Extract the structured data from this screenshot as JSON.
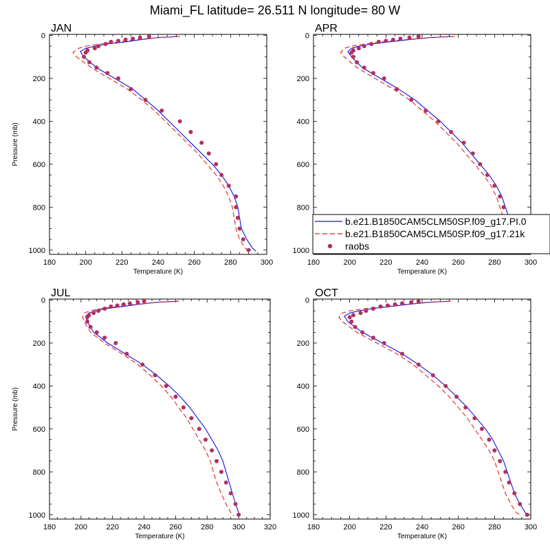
{
  "figure": {
    "title": "Miami_FL  latitude= 26.511 N longitude= 80 W"
  },
  "legend": {
    "entries": [
      {
        "label": "b.e21.B1850CAM5CLM50SP.f09_g17.PI.0",
        "color": "#1010e0",
        "style": "solid"
      },
      {
        "label": "b.e21.B1850CAM5CLM50SP.f09_g17.21k",
        "color": "#e02020",
        "style": "dashed"
      },
      {
        "label": "raobs",
        "color": "#b03060",
        "style": "marker"
      }
    ]
  },
  "chart_data": [
    {
      "type": "line",
      "title": "JAN",
      "xlabel": "Temperature (K)",
      "ylabel": "Pressure (mb)",
      "xlim": [
        180,
        300
      ],
      "ylim": [
        1020,
        -5
      ],
      "x_ticks": [
        180,
        200,
        220,
        240,
        260,
        280,
        300
      ],
      "y_ticks": [
        0,
        200,
        400,
        600,
        800,
        1000
      ],
      "series": [
        {
          "name": "b.e21.B1850CAM5CLM50SP.f09_g17.PI.0",
          "x": [
            251,
            240,
            230,
            222,
            212,
            205,
            200,
            197,
            199,
            206,
            216,
            226,
            233,
            240,
            246,
            252,
            258,
            264,
            270,
            275,
            279,
            282,
            284,
            285,
            286,
            289,
            292,
            294
          ],
          "y": [
            5,
            10,
            20,
            30,
            40,
            50,
            60,
            75,
            100,
            150,
            200,
            250,
            300,
            350,
            400,
            450,
            500,
            550,
            600,
            650,
            700,
            750,
            800,
            850,
            900,
            950,
            990,
            1005
          ]
        },
        {
          "name": "b.e21.B1850CAM5CLM50SP.f09_g17.21k",
          "x": [
            252,
            240,
            228,
            218,
            208,
            200,
            196,
            193,
            195,
            203,
            213,
            223,
            231,
            238,
            244,
            250,
            256,
            262,
            267,
            272,
            276,
            279,
            281,
            282,
            283,
            285,
            288,
            290
          ],
          "y": [
            5,
            10,
            20,
            30,
            40,
            50,
            60,
            80,
            100,
            150,
            200,
            250,
            300,
            350,
            400,
            450,
            500,
            550,
            600,
            650,
            700,
            750,
            800,
            850,
            900,
            950,
            990,
            1005
          ]
        },
        {
          "name": "raobs",
          "x": [
            235,
            230,
            226,
            222,
            218,
            214,
            211,
            207,
            205,
            201,
            200,
            199,
            202,
            206,
            212,
            218,
            225,
            233,
            242,
            252,
            258,
            264,
            268,
            272,
            275,
            279,
            283,
            283,
            284,
            285,
            287,
            290
          ],
          "y": [
            5,
            10,
            15,
            20,
            25,
            30,
            40,
            50,
            60,
            70,
            80,
            100,
            125,
            150,
            175,
            200,
            250,
            300,
            350,
            400,
            450,
            500,
            550,
            600,
            650,
            700,
            750,
            800,
            850,
            900,
            950,
            1000
          ]
        }
      ]
    },
    {
      "type": "line",
      "title": "APR",
      "xlabel": "Temperature (K)",
      "ylabel": "",
      "xlim": [
        180,
        300
      ],
      "ylim": [
        1020,
        -5
      ],
      "x_ticks": [
        180,
        200,
        220,
        240,
        260,
        280,
        300
      ],
      "y_ticks": [
        0,
        200,
        400,
        600,
        800,
        1000
      ],
      "series": [
        {
          "name": "b.e21.B1850CAM5CLM50SP.f09_g17.PI.0",
          "x": [
            256,
            244,
            232,
            222,
            212,
            205,
            201,
            199,
            201,
            207,
            217,
            227,
            236,
            243,
            250,
            256,
            262,
            267,
            272,
            277,
            281,
            284,
            286,
            288,
            290,
            292,
            294,
            296
          ],
          "y": [
            5,
            10,
            20,
            30,
            40,
            50,
            60,
            75,
            100,
            150,
            200,
            250,
            300,
            350,
            400,
            450,
            500,
            550,
            600,
            650,
            700,
            750,
            800,
            850,
            900,
            950,
            990,
            1005
          ]
        },
        {
          "name": "b.e21.B1850CAM5CLM50SP.f09_g17.21k",
          "x": [
            258,
            244,
            230,
            218,
            208,
            201,
            197,
            195,
            197,
            204,
            214,
            224,
            233,
            240,
            247,
            253,
            259,
            264,
            269,
            274,
            278,
            281,
            283,
            285,
            287,
            289,
            291,
            293
          ],
          "y": [
            5,
            10,
            20,
            30,
            40,
            50,
            60,
            80,
            100,
            150,
            200,
            250,
            300,
            350,
            400,
            450,
            500,
            550,
            600,
            650,
            700,
            750,
            800,
            850,
            900,
            950,
            990,
            1005
          ]
        },
        {
          "name": "raobs",
          "x": [
            238,
            233,
            228,
            224,
            220,
            216,
            212,
            208,
            205,
            202,
            201,
            202,
            204,
            208,
            213,
            219,
            226,
            234,
            242,
            249,
            256,
            263,
            268,
            272,
            276,
            280,
            283,
            285,
            287,
            289,
            292,
            295
          ],
          "y": [
            5,
            10,
            15,
            20,
            25,
            30,
            40,
            50,
            60,
            70,
            80,
            100,
            125,
            150,
            175,
            200,
            250,
            300,
            350,
            400,
            450,
            500,
            550,
            600,
            650,
            700,
            750,
            800,
            850,
            900,
            950,
            1000
          ]
        }
      ]
    },
    {
      "type": "line",
      "title": "JUL",
      "xlabel": "Temperature (K)",
      "ylabel": "Pressure (mb)",
      "xlim": [
        180,
        320
      ],
      "ylim": [
        1020,
        -5
      ],
      "x_ticks": [
        180,
        200,
        220,
        240,
        260,
        280,
        300,
        320
      ],
      "y_ticks": [
        0,
        200,
        400,
        600,
        800,
        1000
      ],
      "series": [
        {
          "name": "b.e21.B1850CAM5CLM50SP.f09_g17.PI.0",
          "x": [
            262,
            248,
            236,
            226,
            216,
            209,
            205,
            203,
            204,
            208,
            217,
            228,
            239,
            248,
            256,
            263,
            269,
            274,
            279,
            283,
            287,
            290,
            292,
            294,
            296,
            298,
            300,
            301
          ],
          "y": [
            5,
            10,
            20,
            30,
            40,
            50,
            60,
            75,
            100,
            150,
            200,
            250,
            300,
            350,
            400,
            450,
            500,
            550,
            600,
            650,
            700,
            750,
            800,
            850,
            900,
            950,
            990,
            1005
          ]
        },
        {
          "name": "b.e21.B1850CAM5CLM50SP.f09_g17.21k",
          "x": [
            262,
            248,
            234,
            222,
            212,
            206,
            202,
            201,
            202,
            206,
            215,
            226,
            236,
            244,
            251,
            257,
            262,
            267,
            271,
            275,
            279,
            282,
            284,
            286,
            289,
            292,
            295,
            297
          ],
          "y": [
            5,
            10,
            20,
            30,
            40,
            50,
            60,
            80,
            100,
            150,
            200,
            250,
            300,
            350,
            400,
            450,
            500,
            550,
            600,
            650,
            700,
            750,
            800,
            850,
            900,
            950,
            990,
            1005
          ]
        },
        {
          "name": "raobs",
          "x": [
            240,
            236,
            231,
            227,
            223,
            219,
            215,
            211,
            208,
            205,
            204,
            204,
            206,
            210,
            215,
            222,
            229,
            239,
            247,
            254,
            260,
            265,
            270,
            275,
            279,
            283,
            286,
            289,
            292,
            295,
            298,
            300
          ],
          "y": [
            5,
            10,
            15,
            20,
            25,
            30,
            40,
            50,
            60,
            70,
            80,
            100,
            125,
            150,
            175,
            200,
            250,
            300,
            350,
            400,
            450,
            500,
            550,
            600,
            650,
            700,
            750,
            800,
            850,
            900,
            950,
            1000
          ]
        }
      ]
    },
    {
      "type": "line",
      "title": "OCT",
      "xlabel": "Temperature (K)",
      "ylabel": "",
      "xlim": [
        180,
        300
      ],
      "ylim": [
        1020,
        -5
      ],
      "x_ticks": [
        180,
        200,
        220,
        240,
        260,
        280,
        300
      ],
      "y_ticks": [
        0,
        200,
        400,
        600,
        800,
        1000
      ],
      "series": [
        {
          "name": "b.e21.B1850CAM5CLM50SP.f09_g17.PI.0",
          "x": [
            255,
            244,
            232,
            222,
            212,
            205,
            200,
            197,
            199,
            207,
            218,
            229,
            238,
            246,
            253,
            259,
            265,
            270,
            275,
            279,
            282,
            285,
            287,
            289,
            291,
            294,
            297,
            299
          ],
          "y": [
            5,
            10,
            20,
            30,
            40,
            50,
            60,
            75,
            100,
            150,
            200,
            250,
            300,
            350,
            400,
            450,
            500,
            550,
            600,
            650,
            700,
            750,
            800,
            850,
            900,
            950,
            990,
            1005
          ]
        },
        {
          "name": "b.e21.B1850CAM5CLM50SP.f09_g17.21k",
          "x": [
            256,
            243,
            230,
            218,
            208,
            200,
            196,
            194,
            196,
            204,
            215,
            226,
            235,
            242,
            249,
            255,
            260,
            265,
            269,
            273,
            277,
            280,
            282,
            284,
            286,
            289,
            292,
            295
          ],
          "y": [
            5,
            10,
            20,
            30,
            40,
            50,
            60,
            80,
            100,
            150,
            200,
            250,
            300,
            350,
            400,
            450,
            500,
            550,
            600,
            650,
            700,
            750,
            800,
            850,
            900,
            950,
            990,
            1005
          ]
        },
        {
          "name": "raobs",
          "x": [
            238,
            234,
            229,
            225,
            221,
            217,
            213,
            209,
            206,
            202,
            200,
            201,
            203,
            207,
            213,
            219,
            229,
            238,
            246,
            253,
            259,
            264,
            269,
            273,
            277,
            280,
            283,
            286,
            288,
            291,
            294,
            298
          ],
          "y": [
            5,
            10,
            15,
            20,
            25,
            30,
            40,
            50,
            60,
            70,
            80,
            100,
            125,
            150,
            175,
            200,
            250,
            300,
            350,
            400,
            450,
            500,
            550,
            600,
            650,
            700,
            750,
            800,
            850,
            900,
            950,
            1000
          ]
        }
      ]
    }
  ]
}
